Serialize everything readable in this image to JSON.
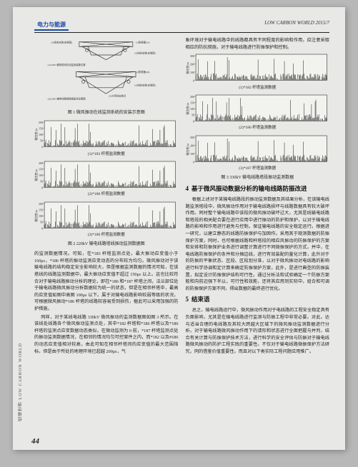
{
  "header": {
    "left": "电力与能源",
    "right": "LOW CARBON WORLD 2015/7"
  },
  "left_col": {
    "diagram": {
      "top_labels": [
        "(3)线夹安装处(安装面)",
        "(1)防振锤(1#)"
      ],
      "mid_label": "(4)线夹安装处(安装面)",
      "bottom_labels_1": [
        "(1)220kV 微风振动在线监测装置安装位置示意",
        "(2)防振锤(2#)",
        "(3)线夹安装处(安装面)"
      ],
      "bottom_left": "(2)220kV 输电线路塔线微风振动监测位置示意图",
      "bottom_label_2": "(4)大导线安装点"
    },
    "caption1": "图 1 微风振动在线监测系统的安装示意图",
    "chart1": {
      "type": "line",
      "y_max": 200,
      "y_ticks": [
        0,
        50,
        100,
        150,
        200
      ],
      "n_points": 180,
      "color": "#000000",
      "bg": "#f2f2ef",
      "sub": "(1)*183 杆塔监测数据",
      "axis_label": "微应变/με"
    },
    "chart2": {
      "type": "line",
      "y_max": 200,
      "y_ticks": [
        0,
        50,
        100,
        150,
        200
      ],
      "n_points": 180,
      "color": "#000000",
      "bg": "#f2f2ef",
      "sub": "(2)*186 杆塔监测数据",
      "axis_label": "微应变/με"
    },
    "chart3": {
      "type": "line",
      "y_max": 200,
      "y_ticks": [
        0,
        50,
        100,
        150,
        200
      ],
      "n_points": 180,
      "color": "#000000",
      "bg": "#f2f2ef",
      "sub": "(3)*186 杆塔监测数据",
      "axis_label": "微应变/με"
    },
    "caption2": "图 2 220kV 输电线路塔线振动监测数据图",
    "para1": "的监测数据情况。可知，在*183 杆塔监测点处，最大振动应变值小于 160με，*186 杆塔的振动监测应变动态的分布较为均匀。微风振动对于该输电线路的结构稳定安全影响较大，但是根据监测数据的情况可知，在该塔线的线路监测数据中，最大振动应变值不超过 150με 以上。这也比较符合对于输电线路振动分析的理论，即在*186 和*187 杆塔之间，法兰部位处于输电线路微风振动分析数据较为统一的状态，但是在相邻杆塔中，最高的应变值如图中高图 100με 以下。属于对输电线路影响较弱等级的状况，可根据微风振动*186 杆塔的线路较容易受到损伤，据此可以采用加强的防护措施。",
    "para2": "同样，对于某线电线路 330kV 微风振动的监测数据图如图 3 所示。在该线处线路各个微风振动监测点处，其中*182 杆塔和*186 杆塔以及*186 杆塔的监测点应变数据动态类似，在微动监测为 0 前，*187 杆塔监测点处的振动监测数据情况，在相邻的情况均匀可控案件之内，而*182 以及#186 的动态应变值相对较高，由此可知在相邻杆塔间的应变值的最大范围指标，但是由于所处的地理环境已超越 200με，气"
  },
  "right_col": {
    "para_top": "象环境对于输电线路中的线路都具有不同程度的影响和作用，应注意采取相应的防抗措施，对于输电线路进行防振保护和控制。",
    "chart1": {
      "type": "line",
      "y_max": 300,
      "y_ticks": [
        0,
        100,
        200,
        300
      ],
      "n_points": 180,
      "color": "#000000",
      "bg": "#f2f2ef",
      "sub": "(1)*182 杆塔监测数据",
      "axis_label": "微应变/με"
    },
    "chart2": {
      "type": "line",
      "y_max": 200,
      "y_ticks": [
        0,
        50,
        100,
        150,
        200
      ],
      "n_points": 180,
      "color": "#000000",
      "bg": "#f2f2ef",
      "sub": "(2)*186 杆塔监测数据",
      "axis_label": "微应变/με"
    },
    "chart3": {
      "type": "line",
      "y_max": 300,
      "y_ticks": [
        0,
        100,
        200,
        300
      ],
      "n_points": 180,
      "color": "#000000",
      "bg": "#f2f2ef",
      "sub": "(3)*187 杆塔监测数据",
      "axis_label": "微应变/με"
    },
    "caption1": "图 3 330kV 输电线路塔段振动监测数据",
    "section4_num": "4",
    "section4_title": "基于微风振动数据分析的输电线路防振改进",
    "para4": "根据上述对于某输电线路段的振动监测数据及其结果分析，在该输电线路监测塔段中，微风振动作用对于输电线路损坏与线路数据具有较大破坏作用。同时整个输电线路中该段的微风振动破坏过大，尤其是线输电线路和塔段的相关配合要在进行应用中进行振动的防护和保护，以对于输电线路的影响和作用进行避免与控制。保证输电线路的安全稳定运行。根据进一研究，以建立静态的线路防振保护与加固作。采用其于观测数据的防振保护方案，同时，也可根据线路和杆塔段的相应风振动的防振保护的方案和安排和防振保护业务进行调整计算进行不同微振保护的方式，并中，在电线路防振保护的条件和分摊边线，进行有效装配的量化计算，此外对于的防振的平衡状态、区段、区段划分准，以对于微风振动对电线路的影响进行科学协调和定计算来确定防振保护方案，此外，是进行典型的防振装置，拟定设计防振保护结构可行性。通过分析法和试验确定一个防振方案能和向前迈强下半以，可行性和效能，还将其应用到实际中，组合和可调的防振保护方案不同，得出数据的最终进行优化。",
    "section5_num": "5",
    "section5_title": "结束语",
    "para5": "总之，输电线路运行中，微风振动作用对于电线路的工程安全稳定具有负面影响，尤其是在输电线路进行监测与防振工程中非常必要。对此，达与适当合理的电线路及其较大跨越大区域下的微风振动监测数据进行分析，对于输电线路微风振动作用下的请形和状态进行全面把握与并判，结合有关计算与防振保护技术方法，进行科学的安全评估与防振对于输电线路微风振动的防护工程实践的重要性。不仅对于输电线路微振保护方法研究，同的借鉴价值重要性。而且对以下类实际工程问题应用推广。"
  },
  "page_number": "44",
  "spine_text": "低碳世界  LOW CARBON WORLD"
}
